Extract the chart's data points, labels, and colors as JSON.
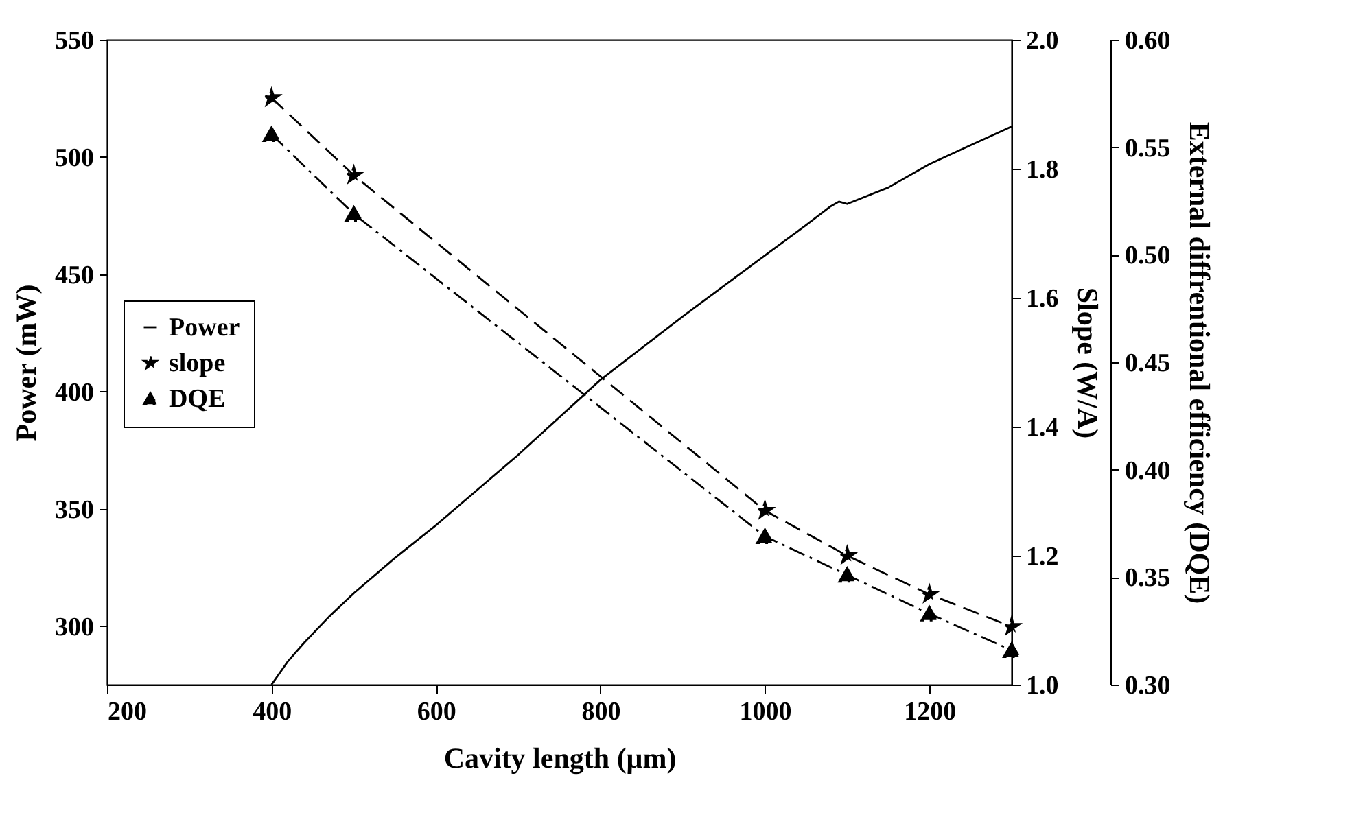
{
  "chart_data": {
    "type": "line",
    "xlabel": "Cavity length (μm)",
    "ylabel": "Power (mW)",
    "y2label": "Slope (W/A)",
    "y3label": "External diffrentional efficiency (DQE)",
    "xlim": [
      200,
      1300
    ],
    "xticks": [
      200,
      400,
      600,
      800,
      1000,
      1200
    ],
    "ylim": [
      275,
      550
    ],
    "yticks": [
      300,
      350,
      400,
      450,
      500,
      550
    ],
    "y2lim": [
      1.0,
      2.0
    ],
    "y2ticks": [
      {
        "value": 1,
        "label": "1.0"
      },
      1.2,
      1.4,
      1.6,
      1.8,
      {
        "value": 2,
        "label": "2.0"
      }
    ],
    "y3lim": [
      0.3,
      0.6
    ],
    "y3ticks": [
      {
        "value": 0.3,
        "label": "0.30"
      },
      0.35,
      {
        "value": 0.4,
        "label": "0.40"
      },
      0.45,
      {
        "value": 0.5,
        "label": "0.50"
      },
      0.55,
      {
        "value": 0.6,
        "label": "0.60"
      }
    ],
    "legend": "left",
    "grid": false,
    "series": [
      {
        "name": "Power",
        "color": "#000000",
        "marker": "none",
        "line_style": "solid",
        "x": [
          400,
          420,
          440,
          470,
          500,
          550,
          600,
          700,
          800,
          900,
          1000,
          1050,
          1080,
          1090,
          1100,
          1150,
          1200,
          1250,
          1300
        ],
        "values": [
          275,
          285,
          293,
          304,
          314,
          329,
          343,
          373,
          405,
          432,
          458,
          471,
          479,
          481,
          480,
          487,
          497,
          505,
          513
        ]
      },
      {
        "name": "slope",
        "color": "#000000",
        "marker": "star",
        "line_style": "dashed",
        "axis": "y2",
        "x": [
          400,
          500,
          1000,
          1100,
          1200,
          1300
        ],
        "values": [
          1.91,
          1.79,
          1.27,
          1.2,
          1.14,
          1.09
        ]
      },
      {
        "name": "DQE",
        "color": "#000000",
        "marker": "triangle",
        "line_style": "dashdot",
        "axis": "y3",
        "x": [
          400,
          500,
          1000,
          1100,
          1200,
          1300
        ],
        "values": [
          0.556,
          0.519,
          0.369,
          0.351,
          0.333,
          0.316
        ]
      }
    ]
  }
}
